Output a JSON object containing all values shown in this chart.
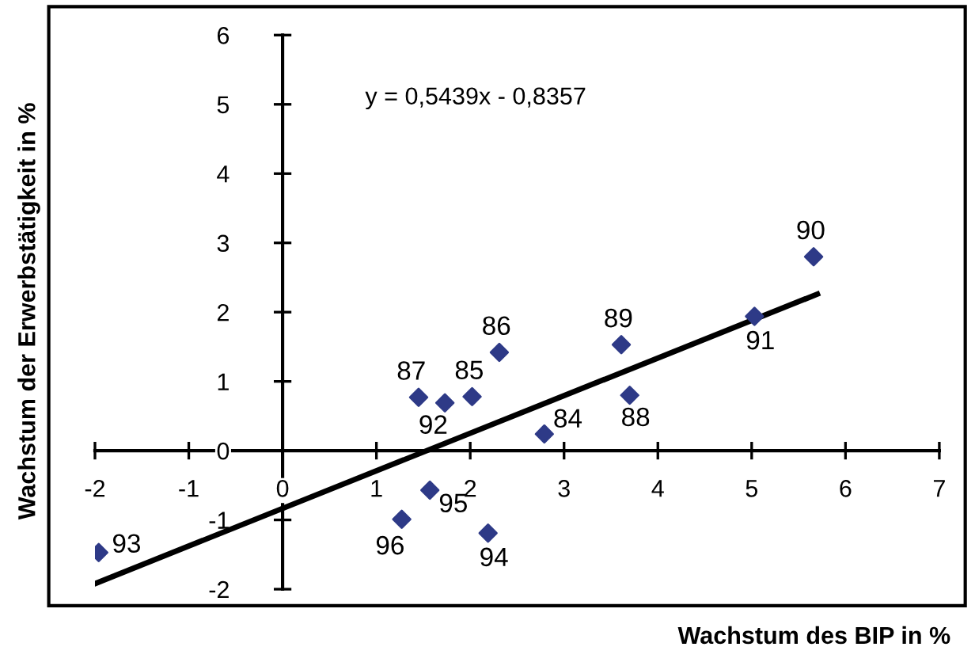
{
  "chart_data": {
    "type": "scatter",
    "xlabel": "Wachstum des BIP in %",
    "ylabel": "Wachstum der Erwerbstätigkeit in %",
    "xlim": [
      -2,
      7
    ],
    "ylim": [
      -2,
      6
    ],
    "xticks": [
      -2,
      -1,
      0,
      1,
      2,
      3,
      4,
      5,
      6,
      7
    ],
    "yticks": [
      -2,
      -1,
      0,
      1,
      2,
      3,
      4,
      5,
      6
    ],
    "grid": false,
    "legend": false,
    "marker": "diamond",
    "series": [
      {
        "color": "#2e3a87",
        "x": [
          2.79,
          2.02,
          2.31,
          1.45,
          3.7,
          3.61,
          5.66,
          5.03,
          1.73,
          -1.96,
          2.19,
          1.57,
          1.27
        ],
        "values": [
          0.24,
          0.78,
          1.42,
          0.77,
          0.8,
          1.53,
          2.8,
          1.94,
          0.69,
          -1.47,
          -1.19,
          -0.57,
          -0.99
        ]
      },
      {
        "type": "line",
        "color": "#000000",
        "x": [
          -2,
          5.7
        ],
        "values": [
          -1.92,
          2.26
        ],
        "marker": "none",
        "line_style": "solid"
      }
    ],
    "annotations": [
      "y = 0,5439x - 0,8357",
      {
        "text": "84",
        "x": 2.79,
        "y": 0.24
      },
      {
        "text": "85",
        "x": 2.02,
        "y": 0.78
      },
      {
        "text": "86",
        "x": 2.31,
        "y": 1.42
      },
      {
        "text": "87",
        "x": 1.45,
        "y": 0.77
      },
      {
        "text": "88",
        "x": 3.7,
        "y": 0.8
      },
      {
        "text": "89",
        "x": 3.61,
        "y": 1.53
      },
      {
        "text": "90",
        "x": 5.66,
        "y": 2.8
      },
      {
        "text": "91",
        "x": 5.03,
        "y": 1.94
      },
      {
        "text": "92",
        "x": 1.73,
        "y": 0.69
      },
      {
        "text": "93",
        "x": -1.96,
        "y": -1.47
      },
      {
        "text": "94",
        "x": 2.19,
        "y": -1.19
      },
      {
        "text": "95",
        "x": 1.57,
        "y": -0.57
      },
      {
        "text": "96",
        "x": 1.27,
        "y": -0.99
      }
    ]
  }
}
